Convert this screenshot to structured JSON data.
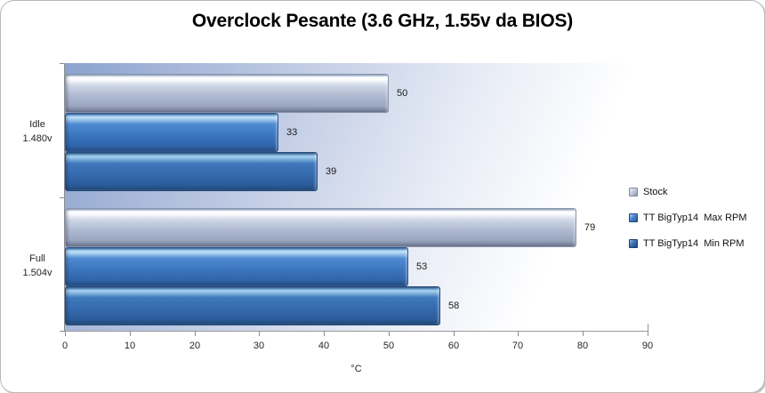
{
  "title": "Overclock Pesante (3.6 GHz, 1.55v da BIOS)",
  "chart_data": {
    "type": "bar",
    "orientation": "horizontal",
    "title": "Overclock Pesante (3.6 GHz, 1.55v da BIOS)",
    "xlabel": "°C",
    "xlim": [
      0,
      90
    ],
    "xticks": [
      0,
      10,
      20,
      30,
      40,
      50,
      60,
      70,
      80,
      90
    ],
    "grid": false,
    "legend_position": "right",
    "data_labels": true,
    "categories": [
      {
        "line1": "Idle",
        "line2": "1.480v"
      },
      {
        "line1": "Full",
        "line2": "1.504v"
      }
    ],
    "series": [
      {
        "name": "Stock",
        "values": [
          50,
          79
        ],
        "color": "#aab7d0"
      },
      {
        "name": "TT BigTyp14  Max RPM",
        "values": [
          33,
          53
        ],
        "color": "#3c76c0"
      },
      {
        "name": "TT BigTyp14  Min RPM",
        "values": [
          39,
          58
        ],
        "color": "#316098"
      }
    ]
  },
  "style": {
    "plot_bg_from": "#8aa2ce",
    "plot_bg_to": "#ffffff",
    "axis_color": "#8c8c8c",
    "text_color": "#262626",
    "chart_border_color": "#b9b9b9"
  }
}
